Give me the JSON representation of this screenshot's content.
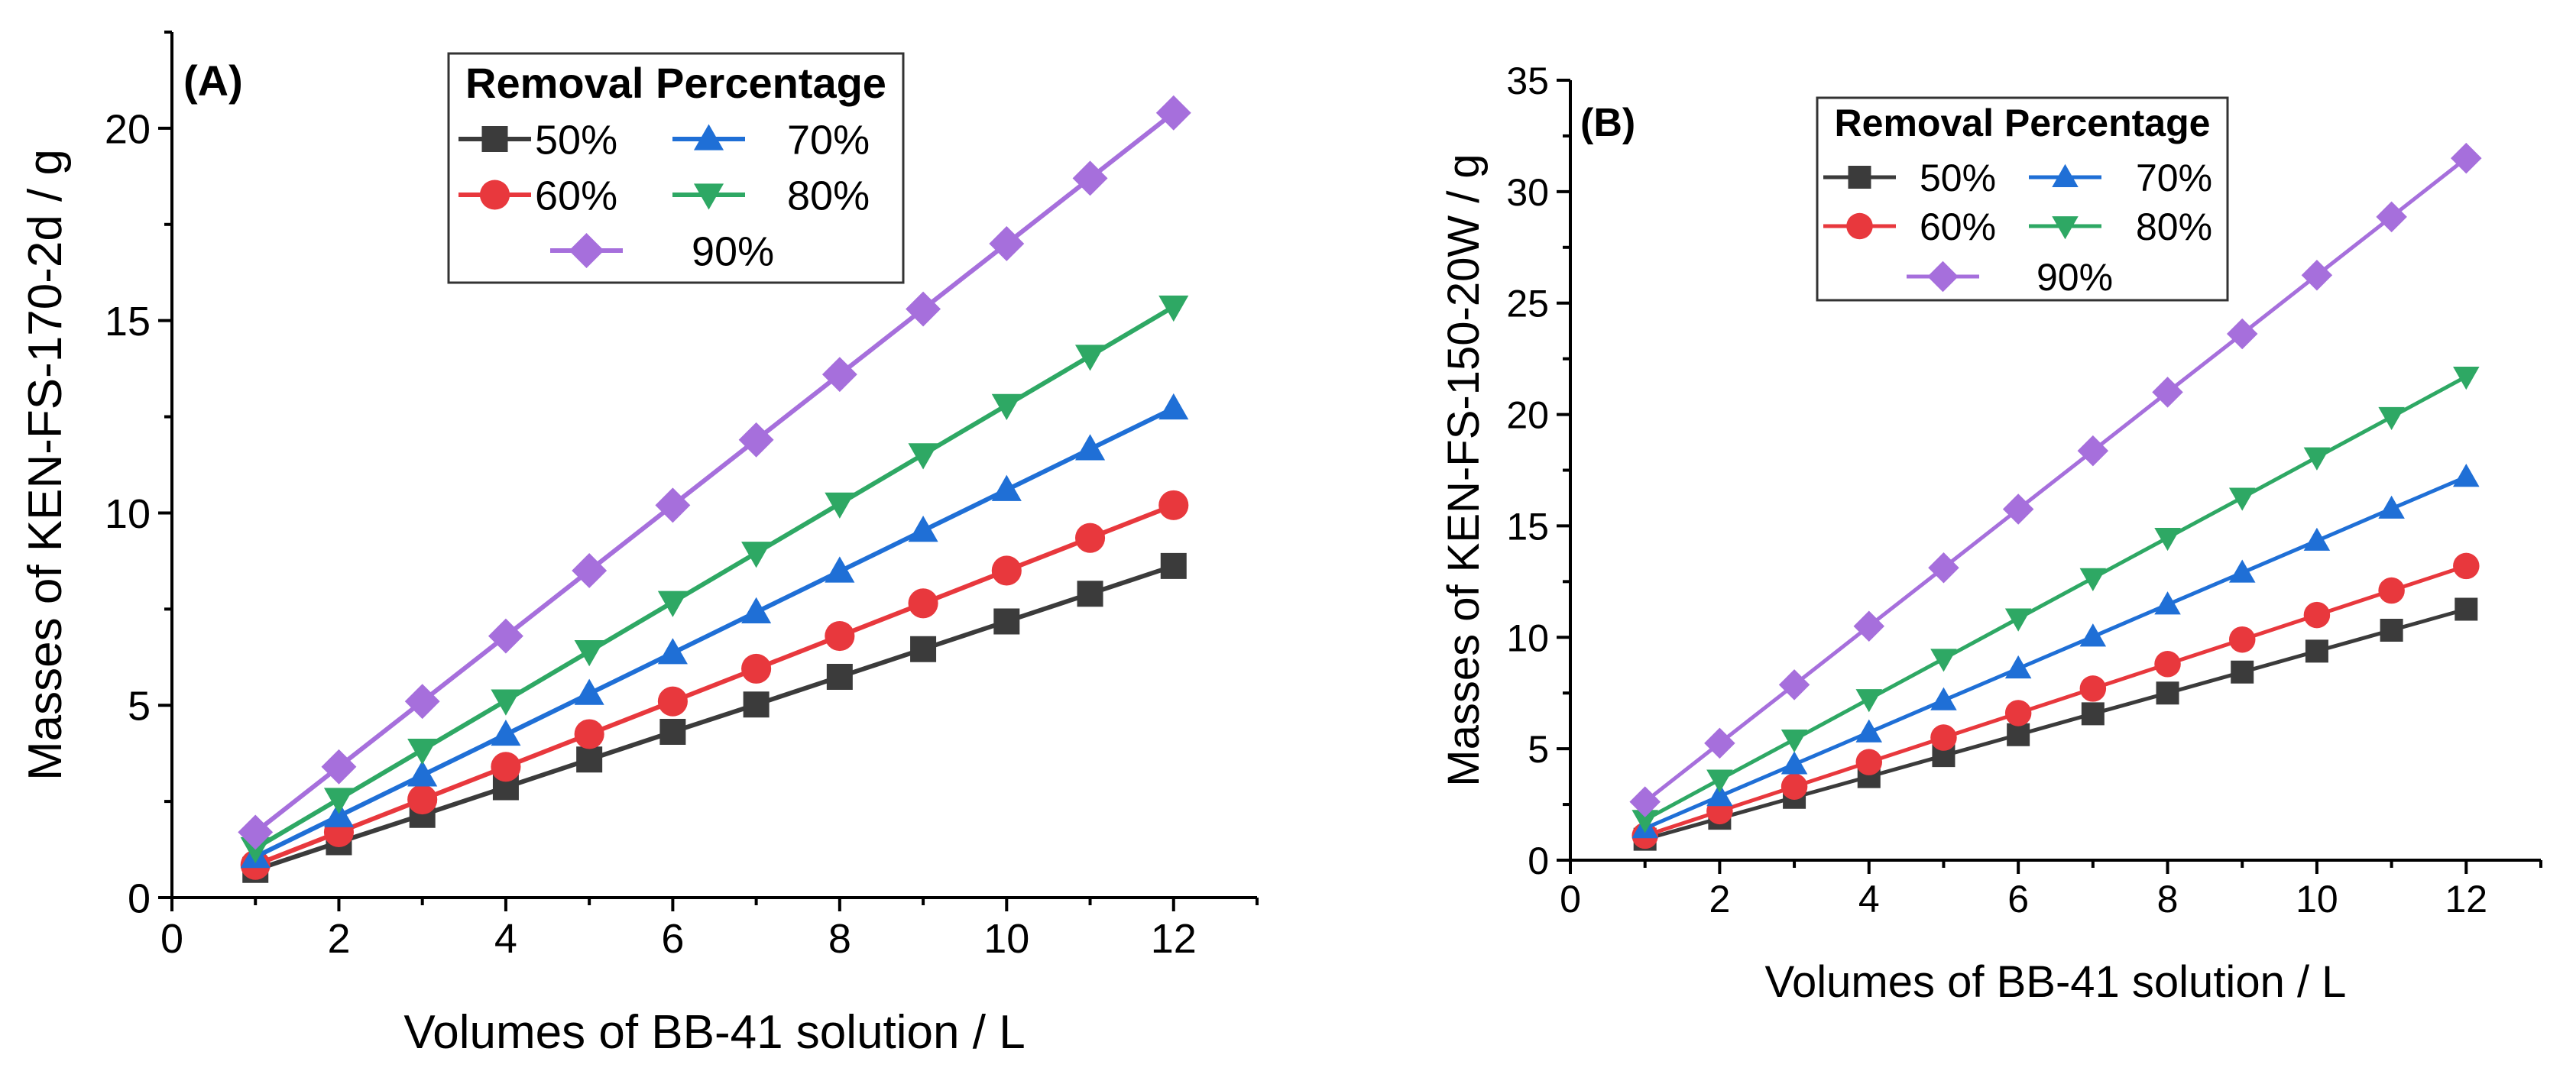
{
  "chart_data": [
    {
      "type": "line",
      "panel_label": "(A)",
      "xlabel": "Volumes of BB-41 solution / L",
      "ylabel": "Masses of KEN-FS-170-2d / g",
      "xlim": [
        0,
        13
      ],
      "ylim": [
        0,
        22.5
      ],
      "xticks": [
        0,
        2,
        4,
        6,
        8,
        10,
        12
      ],
      "yticks": [
        0,
        5,
        10,
        15,
        20
      ],
      "legend_title": "Removal Percentage",
      "legend_position": "top-center",
      "x": [
        1,
        2,
        3,
        4,
        5,
        6,
        7,
        8,
        9,
        10,
        11,
        12
      ],
      "series": [
        {
          "name": "50%",
          "color": "#3b3b3b",
          "marker": "square",
          "values": [
            0.72,
            1.44,
            2.15,
            2.87,
            3.59,
            4.31,
            5.02,
            5.74,
            6.46,
            7.18,
            7.9,
            8.62
          ]
        },
        {
          "name": "60%",
          "color": "#e8383d",
          "marker": "circle",
          "values": [
            0.85,
            1.7,
            2.55,
            3.4,
            4.25,
            5.1,
            5.95,
            6.8,
            7.65,
            8.5,
            9.35,
            10.2
          ]
        },
        {
          "name": "70%",
          "color": "#1f6fd6",
          "marker": "triangle-up",
          "values": [
            1.06,
            2.12,
            3.18,
            4.24,
            5.3,
            6.36,
            7.42,
            8.48,
            9.54,
            10.6,
            11.66,
            12.72
          ]
        },
        {
          "name": "80%",
          "color": "#2ea864",
          "marker": "triangle-down",
          "values": [
            1.28,
            2.56,
            3.84,
            5.12,
            6.4,
            7.68,
            8.96,
            10.24,
            11.52,
            12.8,
            14.08,
            15.36
          ]
        },
        {
          "name": "90%",
          "color": "#a66fdc",
          "marker": "diamond",
          "values": [
            1.7,
            3.4,
            5.1,
            6.8,
            8.5,
            10.2,
            11.9,
            13.6,
            15.3,
            17.0,
            18.7,
            20.4
          ]
        }
      ]
    },
    {
      "type": "line",
      "panel_label": "(B)",
      "xlabel": "Volumes of BB-41 solution / L",
      "ylabel": "Masses of KEN-FS-150-20W / g",
      "xlim": [
        0,
        13
      ],
      "ylim": [
        0,
        35
      ],
      "xticks": [
        0,
        2,
        4,
        6,
        8,
        10,
        12
      ],
      "yticks": [
        0,
        5,
        10,
        15,
        20,
        25,
        30,
        35
      ],
      "legend_title": "Removal Percentage",
      "legend_position": "top-left",
      "x": [
        1,
        2,
        3,
        4,
        5,
        6,
        7,
        8,
        9,
        10,
        11,
        12
      ],
      "series": [
        {
          "name": "50%",
          "color": "#3b3b3b",
          "marker": "square",
          "values": [
            0.94,
            1.88,
            2.82,
            3.75,
            4.69,
            5.63,
            6.57,
            7.5,
            8.44,
            9.38,
            10.32,
            11.26
          ]
        },
        {
          "name": "60%",
          "color": "#e8383d",
          "marker": "circle",
          "values": [
            1.1,
            2.2,
            3.3,
            4.4,
            5.5,
            6.6,
            7.7,
            8.8,
            9.9,
            11.0,
            12.1,
            13.2
          ]
        },
        {
          "name": "70%",
          "color": "#1f6fd6",
          "marker": "triangle-up",
          "values": [
            1.43,
            2.87,
            4.3,
            5.73,
            7.17,
            8.6,
            10.03,
            11.47,
            12.9,
            14.33,
            15.77,
            17.2
          ]
        },
        {
          "name": "80%",
          "color": "#2ea864",
          "marker": "triangle-down",
          "values": [
            1.81,
            3.62,
            5.42,
            7.23,
            9.04,
            10.85,
            12.66,
            14.47,
            16.27,
            18.08,
            19.89,
            21.7
          ]
        },
        {
          "name": "90%",
          "color": "#a66fdc",
          "marker": "diamond",
          "values": [
            2.62,
            5.25,
            7.87,
            10.5,
            13.12,
            15.75,
            18.37,
            21.0,
            23.62,
            26.25,
            28.87,
            31.5
          ]
        }
      ]
    }
  ]
}
